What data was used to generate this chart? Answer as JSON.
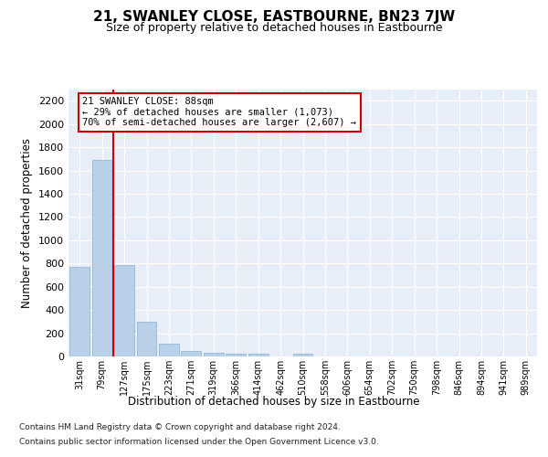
{
  "title": "21, SWANLEY CLOSE, EASTBOURNE, BN23 7JW",
  "subtitle": "Size of property relative to detached houses in Eastbourne",
  "xlabel": "Distribution of detached houses by size in Eastbourne",
  "ylabel": "Number of detached properties",
  "categories": [
    "31sqm",
    "79sqm",
    "127sqm",
    "175sqm",
    "223sqm",
    "271sqm",
    "319sqm",
    "366sqm",
    "414sqm",
    "462sqm",
    "510sqm",
    "558sqm",
    "606sqm",
    "654sqm",
    "702sqm",
    "750sqm",
    "798sqm",
    "846sqm",
    "894sqm",
    "941sqm",
    "989sqm"
  ],
  "bar_heights": [
    770,
    1690,
    790,
    300,
    110,
    45,
    35,
    25,
    20,
    0,
    20,
    0,
    0,
    0,
    0,
    0,
    0,
    0,
    0,
    0,
    0
  ],
  "bar_color": "#b8d0e8",
  "bar_edge_color": "#8ab0d0",
  "vline_x": 1.5,
  "vline_color": "#cc0000",
  "annotation_line1": "21 SWANLEY CLOSE: 88sqm",
  "annotation_line2": "← 29% of detached houses are smaller (1,073)",
  "annotation_line3": "70% of semi-detached houses are larger (2,607) →",
  "annotation_box_edgecolor": "#cc0000",
  "ylim": [
    0,
    2300
  ],
  "yticks": [
    0,
    200,
    400,
    600,
    800,
    1000,
    1200,
    1400,
    1600,
    1800,
    2000,
    2200
  ],
  "footnote1": "Contains HM Land Registry data © Crown copyright and database right 2024.",
  "footnote2": "Contains public sector information licensed under the Open Government Licence v3.0.",
  "bg_color": "#e8eef8",
  "fig_bg_color": "#ffffff"
}
